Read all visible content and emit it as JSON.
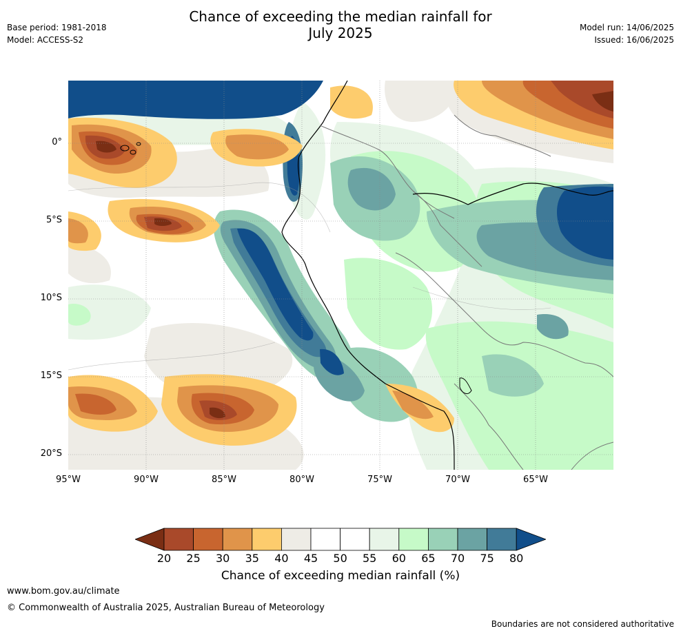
{
  "title": {
    "line1": "Chance of exceeding the median rainfall for",
    "line2": "July 2025"
  },
  "meta_left": {
    "base_period": "Base period: 1981-2018",
    "model": "Model: ACCESS-S2"
  },
  "meta_right": {
    "model_run": "Model run: 14/06/2025",
    "issued": "Issued: 16/06/2025"
  },
  "map": {
    "lat_labels": [
      "0°",
      "5°S",
      "10°S",
      "15°S",
      "20°S"
    ],
    "lon_labels": [
      "95°W",
      "90°W",
      "85°W",
      "80°W",
      "75°W",
      "70°W",
      "65°W"
    ]
  },
  "colorbar": {
    "ticks": [
      "20",
      "25",
      "30",
      "35",
      "40",
      "45",
      "50",
      "55",
      "60",
      "65",
      "70",
      "75",
      "80"
    ],
    "colors": [
      "#7a2e14",
      "#a9492a",
      "#c8652f",
      "#e0944a",
      "#fdcc6d",
      "#eeece6",
      "#ffffff",
      "#ffffff",
      "#e8f5e8",
      "#c6fac8",
      "#99d1b7",
      "#6ba3a3",
      "#417b98",
      "#114e8a"
    ],
    "label": "Chance of exceeding median rainfall (%)"
  },
  "footer": {
    "website": "www.bom.gov.au/climate",
    "copyright": "© Commonwealth of Australia 2025, Australian Bureau of Meteorology",
    "disclaimer": "Boundaries are not considered authoritative"
  }
}
